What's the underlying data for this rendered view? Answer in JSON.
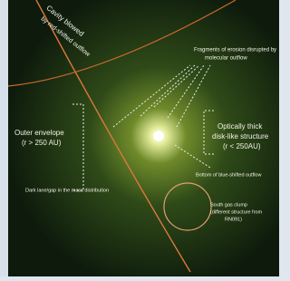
{
  "annotations": {
    "cavity": [
      "Cavity blowed",
      "by red-shifted outflow"
    ],
    "fragments": [
      "Fragments of erosion disrupted by",
      "molecular outflow"
    ],
    "outer_envelope": [
      "Outer envelope",
      "(r > 250 AU)"
    ],
    "disk": [
      "Optically thick",
      "disk-like structure",
      "(r < 250AU)"
    ],
    "blue_outflow": [
      "Bottom of blue-shifted outflow"
    ],
    "dark_lane": [
      "Dark lane/gap in the mass distribution"
    ],
    "south_clump": [
      "South gas clump",
      "(different structure from",
      "RN091)"
    ]
  }
}
